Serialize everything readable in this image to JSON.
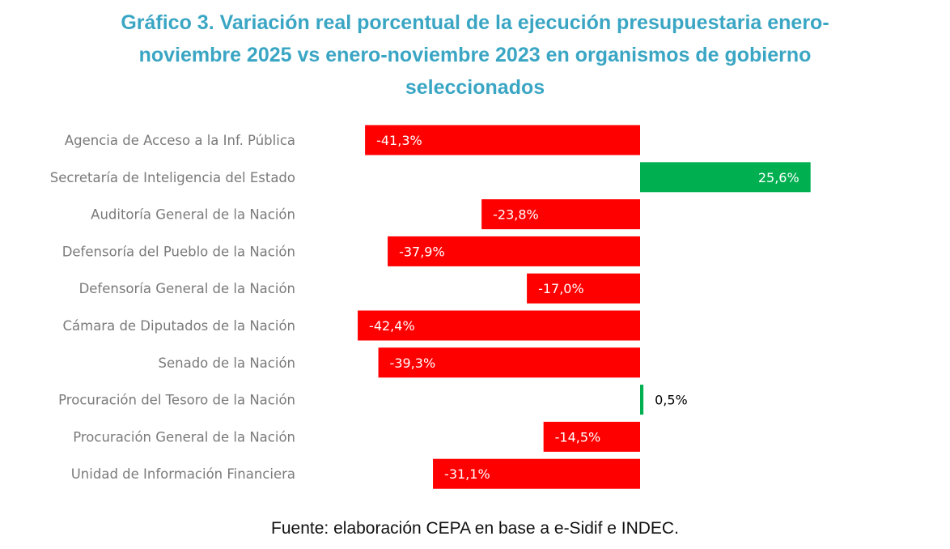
{
  "chart_data": {
    "type": "bar",
    "orientation": "horizontal",
    "title": "Gráfico 3. Variación real porcentual de la ejecución presupuestaria enero-noviembre 2025 vs enero-noviembre 2023 en organismos de gobierno seleccionados",
    "title_lines": [
      "Gráfico 3. Variación real porcentual de la ejecución presupuestaria enero-",
      "noviembre 2025 vs enero-noviembre 2023 en organismos de gobierno",
      "seleccionados"
    ],
    "categories": [
      "Agencia de Acceso a la Inf. Pública",
      "Secretaría de Inteligencia del Estado",
      "Auditoría General de la Nación",
      "Defensoría del Pueblo de la Nación",
      "Defensoría General de la Nación",
      "Cámara de Diputados de la Nación",
      "Senado de la Nación",
      "Procuración del Tesoro de la Nación",
      "Procuración General de la Nación",
      "Unidad de Información Financiera"
    ],
    "values": [
      -41.3,
      25.6,
      -23.8,
      -37.9,
      -17.0,
      -42.4,
      -39.3,
      0.5,
      -14.5,
      -31.1
    ],
    "data_labels": [
      "-41,3%",
      "25,6%",
      "-23,8%",
      "-37,9%",
      "-17,0%",
      "-42,4%",
      "-39,3%",
      "0,5%",
      "-14,5%",
      "-31,1%"
    ],
    "xlabel": "",
    "ylabel": "",
    "xlim": [
      -43,
      26
    ],
    "grid": false,
    "legend": "none",
    "colors": {
      "negative": "#ff0000",
      "positive": "#00b050"
    },
    "source": "Fuente: elaboración CEPA en base a e-Sidif e INDEC."
  }
}
